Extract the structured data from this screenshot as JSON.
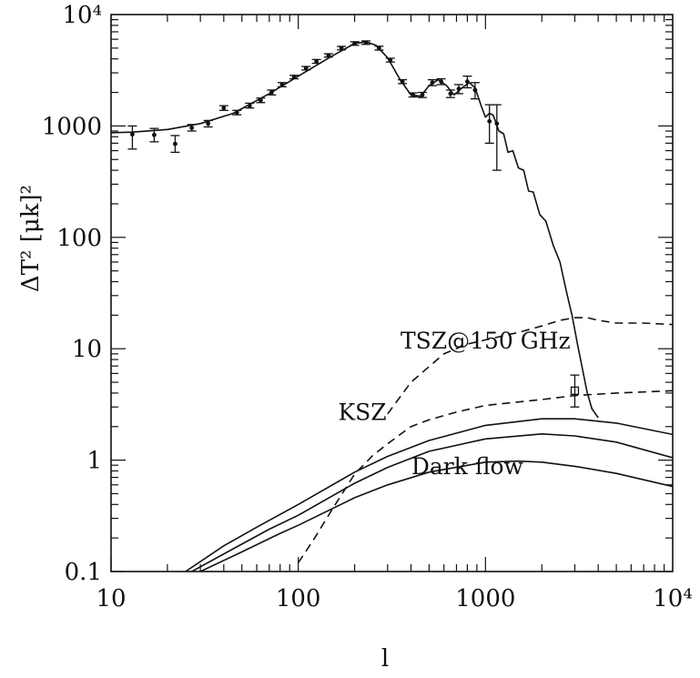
{
  "chart_data": {
    "type": "line",
    "xlabel": "l",
    "ylabel": "ΔT² [μk]²",
    "xscale": "log",
    "yscale": "log",
    "xlim": [
      10,
      10000
    ],
    "ylim": [
      0.1,
      10000
    ],
    "x_ticks": [
      {
        "value": 10,
        "label": "10"
      },
      {
        "value": 100,
        "label": "100"
      },
      {
        "value": 1000,
        "label": "1000"
      },
      {
        "value": 10000,
        "label": "10⁴"
      }
    ],
    "y_ticks": [
      {
        "value": 0.1,
        "label": "0.1"
      },
      {
        "value": 1,
        "label": "1"
      },
      {
        "value": 10,
        "label": "10"
      },
      {
        "value": 100,
        "label": "100"
      },
      {
        "value": 1000,
        "label": "1000"
      },
      {
        "value": 10000,
        "label": "10⁴"
      }
    ],
    "annotations": [
      {
        "text": "TSZ@150 GHz",
        "x": 1000,
        "y": 10
      },
      {
        "text": "KSZ",
        "x": 220,
        "y": 2.3
      },
      {
        "text": "Dark flow",
        "x": 800,
        "y": 0.75
      }
    ],
    "series": [
      {
        "style": "solid",
        "points": [
          [
            10,
            870
          ],
          [
            13,
            880
          ],
          [
            20,
            930
          ],
          [
            30,
            1050
          ],
          [
            45,
            1300
          ],
          [
            70,
            1950
          ],
          [
            100,
            2800
          ],
          [
            150,
            4200
          ],
          [
            200,
            5500
          ],
          [
            230,
            5700
          ],
          [
            260,
            5300
          ],
          [
            300,
            4100
          ],
          [
            350,
            2600
          ],
          [
            400,
            1900
          ],
          [
            450,
            1850
          ],
          [
            500,
            2300
          ],
          [
            560,
            2600
          ],
          [
            620,
            2300
          ],
          [
            680,
            1900
          ],
          [
            750,
            2200
          ],
          [
            820,
            2450
          ],
          [
            880,
            2200
          ],
          [
            950,
            1500
          ],
          [
            1000,
            1200
          ],
          [
            1050,
            1300
          ],
          [
            1100,
            1250
          ],
          [
            1180,
            900
          ],
          [
            1250,
            850
          ],
          [
            1320,
            580
          ],
          [
            1400,
            600
          ],
          [
            1500,
            420
          ],
          [
            1600,
            400
          ],
          [
            1700,
            260
          ],
          [
            1800,
            255
          ],
          [
            1950,
            160
          ],
          [
            2100,
            140
          ],
          [
            2300,
            85
          ],
          [
            2500,
            60
          ],
          [
            2700,
            33
          ],
          [
            2900,
            20
          ],
          [
            3100,
            11
          ],
          [
            3300,
            6.5
          ],
          [
            3500,
            4
          ],
          [
            3700,
            2.9
          ],
          [
            4000,
            2.4
          ]
        ]
      },
      {
        "style": "dashed",
        "points": [
          [
            300,
            2.6
          ],
          [
            400,
            5
          ],
          [
            600,
            9
          ],
          [
            800,
            11
          ],
          [
            1000,
            12
          ],
          [
            1500,
            14
          ],
          [
            2000,
            16
          ],
          [
            2500,
            18
          ],
          [
            3000,
            19
          ],
          [
            3500,
            19
          ],
          [
            4000,
            18
          ],
          [
            5000,
            17
          ],
          [
            7000,
            17
          ],
          [
            10000,
            16.5
          ]
        ]
      },
      {
        "style": "dashed",
        "points": [
          [
            100,
            0.12
          ],
          [
            120,
            0.19
          ],
          [
            150,
            0.35
          ],
          [
            200,
            0.75
          ],
          [
            250,
            1.1
          ],
          [
            300,
            1.4
          ],
          [
            350,
            1.7
          ],
          [
            400,
            2.0
          ],
          [
            500,
            2.3
          ],
          [
            700,
            2.7
          ],
          [
            1000,
            3.1
          ],
          [
            2000,
            3.5
          ],
          [
            3000,
            3.8
          ],
          [
            5000,
            4.0
          ],
          [
            10000,
            4.2
          ]
        ]
      },
      {
        "style": "solid",
        "points": [
          [
            25,
            0.1
          ],
          [
            40,
            0.17
          ],
          [
            60,
            0.25
          ],
          [
            100,
            0.4
          ],
          [
            200,
            0.78
          ],
          [
            300,
            1.08
          ],
          [
            500,
            1.5
          ],
          [
            1000,
            2.05
          ],
          [
            2000,
            2.35
          ],
          [
            3000,
            2.35
          ],
          [
            5000,
            2.15
          ],
          [
            10000,
            1.7
          ]
        ]
      },
      {
        "style": "solid",
        "points": [
          [
            27,
            0.1
          ],
          [
            45,
            0.16
          ],
          [
            70,
            0.24
          ],
          [
            100,
            0.32
          ],
          [
            200,
            0.62
          ],
          [
            300,
            0.86
          ],
          [
            500,
            1.2
          ],
          [
            1000,
            1.55
          ],
          [
            2000,
            1.72
          ],
          [
            3000,
            1.65
          ],
          [
            5000,
            1.45
          ],
          [
            10000,
            1.05
          ]
        ]
      },
      {
        "style": "solid",
        "points": [
          [
            30,
            0.1
          ],
          [
            50,
            0.15
          ],
          [
            80,
            0.22
          ],
          [
            100,
            0.26
          ],
          [
            200,
            0.46
          ],
          [
            300,
            0.6
          ],
          [
            500,
            0.78
          ],
          [
            1000,
            0.96
          ],
          [
            1500,
            0.98
          ],
          [
            2000,
            0.96
          ],
          [
            3000,
            0.88
          ],
          [
            5000,
            0.76
          ],
          [
            10000,
            0.58
          ]
        ]
      },
      {
        "style": "points",
        "points": [
          {
            "x": 13,
            "y": 840,
            "lo": 620,
            "hi": 1000
          },
          {
            "x": 17,
            "y": 830,
            "lo": 720,
            "hi": 950
          },
          {
            "x": 22,
            "y": 690,
            "lo": 580,
            "hi": 820
          },
          {
            "x": 27,
            "y": 960,
            "lo": 900,
            "hi": 1030
          },
          {
            "x": 33,
            "y": 1050,
            "lo": 980,
            "hi": 1120
          },
          {
            "x": 40,
            "y": 1450,
            "lo": 1380,
            "hi": 1520
          },
          {
            "x": 47,
            "y": 1320,
            "lo": 1260,
            "hi": 1380
          },
          {
            "x": 55,
            "y": 1520,
            "lo": 1450,
            "hi": 1600
          },
          {
            "x": 63,
            "y": 1700,
            "lo": 1620,
            "hi": 1780
          },
          {
            "x": 72,
            "y": 2000,
            "lo": 1900,
            "hi": 2100
          },
          {
            "x": 82,
            "y": 2350,
            "lo": 2250,
            "hi": 2450
          },
          {
            "x": 95,
            "y": 2750,
            "lo": 2650,
            "hi": 2850
          },
          {
            "x": 110,
            "y": 3300,
            "lo": 3180,
            "hi": 3420
          },
          {
            "x": 125,
            "y": 3800,
            "lo": 3650,
            "hi": 3950
          },
          {
            "x": 145,
            "y": 4300,
            "lo": 4150,
            "hi": 4450
          },
          {
            "x": 170,
            "y": 5000,
            "lo": 4820,
            "hi": 5180
          },
          {
            "x": 200,
            "y": 5500,
            "lo": 5300,
            "hi": 5700
          },
          {
            "x": 230,
            "y": 5600,
            "lo": 5400,
            "hi": 5800
          },
          {
            "x": 270,
            "y": 5000,
            "lo": 4800,
            "hi": 5200
          },
          {
            "x": 310,
            "y": 3900,
            "lo": 3750,
            "hi": 4050
          },
          {
            "x": 360,
            "y": 2500,
            "lo": 2400,
            "hi": 2600
          },
          {
            "x": 410,
            "y": 1900,
            "lo": 1820,
            "hi": 1980
          },
          {
            "x": 460,
            "y": 1900,
            "lo": 1800,
            "hi": 2000
          },
          {
            "x": 520,
            "y": 2450,
            "lo": 2300,
            "hi": 2600
          },
          {
            "x": 580,
            "y": 2500,
            "lo": 2350,
            "hi": 2650
          },
          {
            "x": 650,
            "y": 1950,
            "lo": 1800,
            "hi": 2100
          },
          {
            "x": 720,
            "y": 2150,
            "lo": 1950,
            "hi": 2350
          },
          {
            "x": 800,
            "y": 2500,
            "lo": 2200,
            "hi": 2800
          },
          {
            "x": 880,
            "y": 2100,
            "lo": 1750,
            "hi": 2450
          },
          {
            "x": 1050,
            "y": 1100,
            "lo": 700,
            "hi": 1550
          },
          {
            "x": 1150,
            "y": 1050,
            "lo": 400,
            "hi": 1550
          },
          {
            "x": 3000,
            "y": 4.2,
            "lo": 3.0,
            "hi": 5.8,
            "marker": "square"
          }
        ]
      }
    ]
  }
}
